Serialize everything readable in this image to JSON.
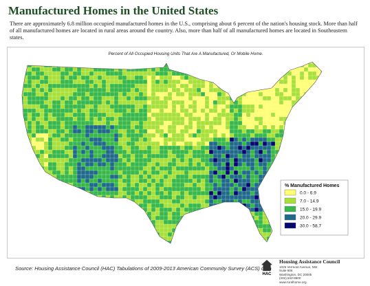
{
  "header": {
    "title": "Manufactured Homes in the United States",
    "intro": "There are approximately 6.8 million occupied manufactured homes in the U.S., comprising about 6 percent of the nation's housing stock.  More than half of all manufactured homes are located in rural areas around the country. Also, more than half of all manufactured homes are located in Southeastern states."
  },
  "map": {
    "subtitle": "Percent of All Occupied Housing Units That Are A Manufactured, Or Mobile Home.",
    "legend": {
      "title": "% Manufactured Homes",
      "classes": [
        {
          "label": "0.0 - 6.9",
          "color": "#ffff73"
        },
        {
          "label": "7.0 - 14.9",
          "color": "#a8e03a"
        },
        {
          "label": "15.0 - 19.9",
          "color": "#38b84a"
        },
        {
          "label": "20.0 - 29.9",
          "color": "#1f6a8a"
        },
        {
          "label": "30.0 - 58.7",
          "color": "#07076e"
        }
      ]
    }
  },
  "footer": {
    "source": "Source:  Housing Assistance Council (HAC) Tabulations of 2009-2013 American Community Survey (ACS) data",
    "org": "Housing Assistance Council",
    "abbr": "HAC",
    "address": [
      "1025 Vermont Avenue, NW",
      "Suite 606",
      "Washington, DC 20005",
      "(202) 842-8600",
      "www.ruralhome.org"
    ]
  }
}
